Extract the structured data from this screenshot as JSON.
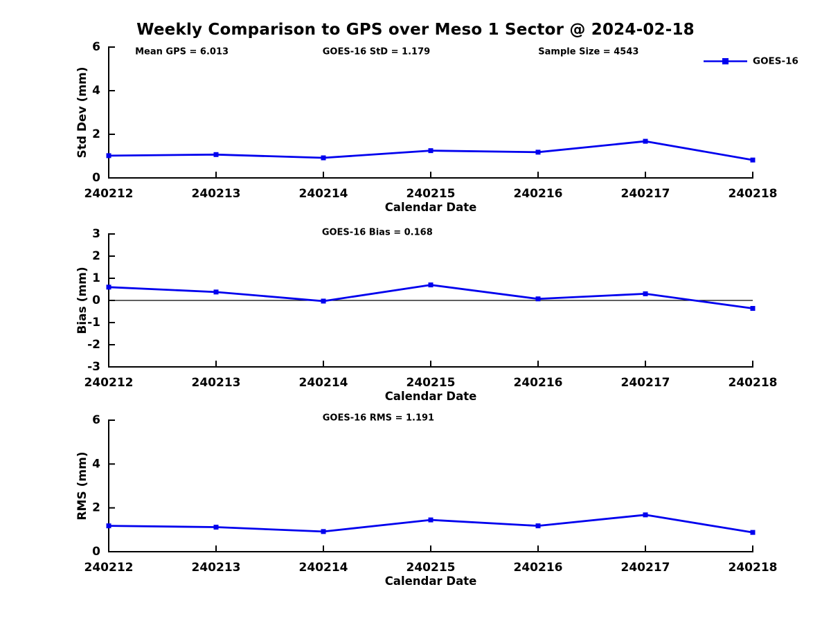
{
  "title": "Weekly Comparison to GPS over Meso 1 Sector @ 2024-02-18",
  "colors": {
    "series": "#0000ee",
    "axis": "#000000",
    "zero_line": "#000000",
    "background": "#ffffff",
    "text": "#000000"
  },
  "legend": {
    "label": "GOES-16",
    "position": "top-right",
    "marker": "filled-square"
  },
  "chart_data": [
    {
      "type": "line",
      "ylabel": "Std Dev (mm)",
      "xlabel": "Calendar Date",
      "ylim": [
        0,
        6
      ],
      "yticks": [
        0,
        2,
        4,
        6
      ],
      "categories": [
        "240212",
        "240213",
        "240214",
        "240215",
        "240216",
        "240217",
        "240218"
      ],
      "series": [
        {
          "name": "GOES-16",
          "values": [
            1.02,
            1.07,
            0.92,
            1.25,
            1.18,
            1.68,
            0.82
          ]
        }
      ],
      "annotations": [
        {
          "text": "Mean GPS = 6.013",
          "xfrac": 0.041
        },
        {
          "text": "GOES-16 StD = 1.179",
          "xfrac": 0.332
        },
        {
          "text": "Sample Size = 4543",
          "xfrac": 0.667
        }
      ],
      "grid": false,
      "zero_line": false,
      "show_legend": true
    },
    {
      "type": "line",
      "ylabel": "Bias (mm)",
      "xlabel": "Calendar Date",
      "ylim": [
        -3,
        3
      ],
      "yticks": [
        -3,
        -2,
        -1,
        0,
        1,
        2,
        3
      ],
      "categories": [
        "240212",
        "240213",
        "240214",
        "240215",
        "240216",
        "240217",
        "240218"
      ],
      "series": [
        {
          "name": "GOES-16",
          "values": [
            0.6,
            0.38,
            -0.03,
            0.7,
            0.07,
            0.3,
            -0.36
          ]
        }
      ],
      "annotations": [
        {
          "text": "GOES-16 Bias  = 0.168",
          "xfrac": 0.331
        }
      ],
      "grid": false,
      "zero_line": true,
      "show_legend": false
    },
    {
      "type": "line",
      "ylabel": "RMS (mm)",
      "xlabel": "Calendar Date",
      "ylim": [
        0,
        6
      ],
      "yticks": [
        0,
        2,
        4,
        6
      ],
      "categories": [
        "240212",
        "240213",
        "240214",
        "240215",
        "240216",
        "240217",
        "240218"
      ],
      "series": [
        {
          "name": "GOES-16",
          "values": [
            1.18,
            1.12,
            0.92,
            1.45,
            1.18,
            1.68,
            0.88
          ]
        }
      ],
      "annotations": [
        {
          "text": "GOES-16 RMS = 1.191",
          "xfrac": 0.332
        }
      ],
      "grid": false,
      "zero_line": false,
      "show_legend": false
    }
  ]
}
